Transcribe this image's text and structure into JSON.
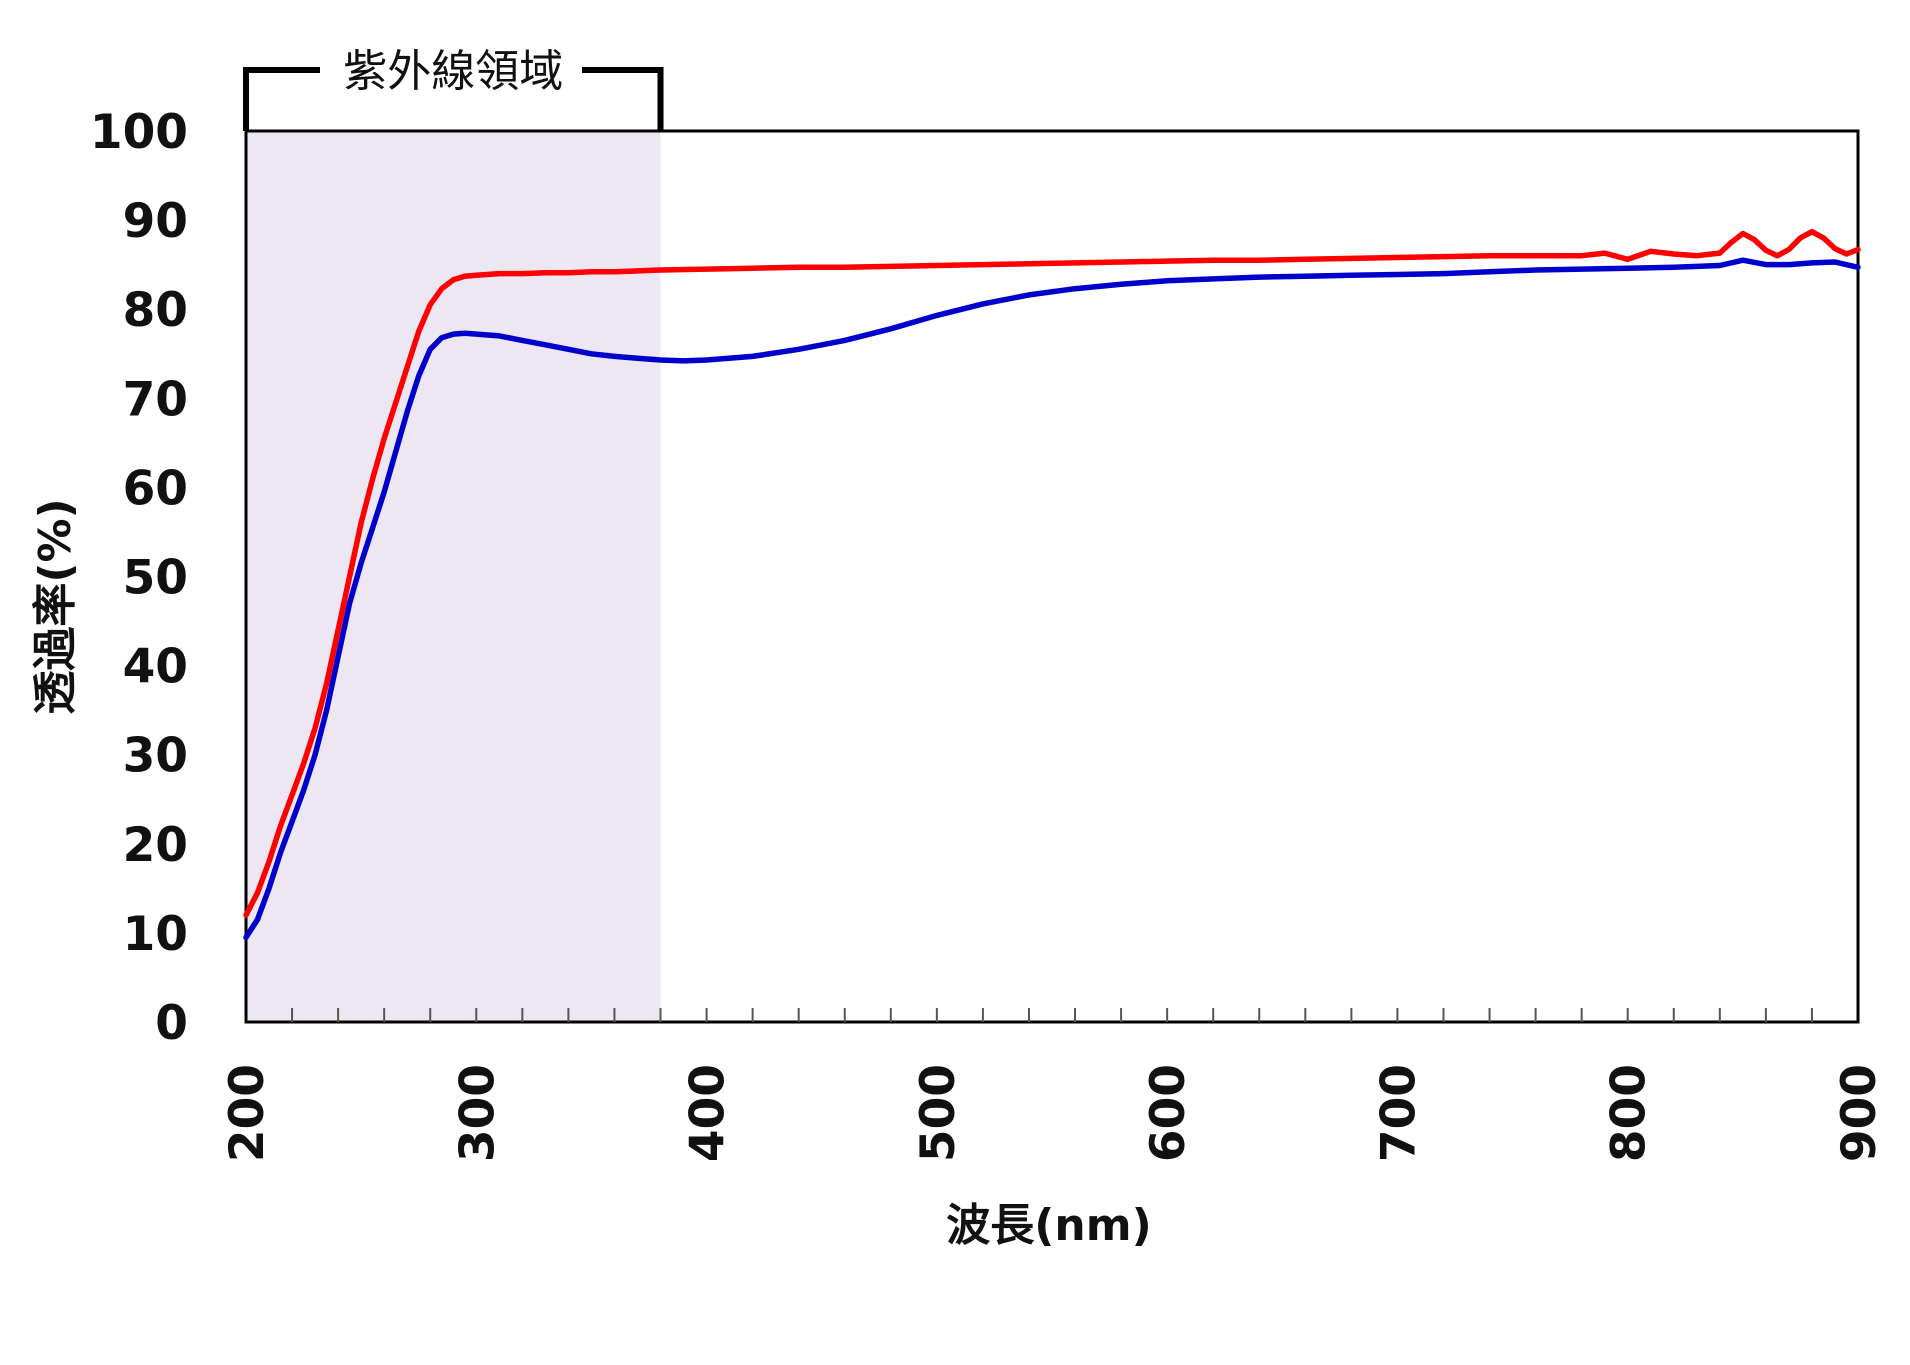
{
  "colors": {
    "red_series": "#ff0000",
    "blue_series": "#0000cc",
    "uv_band": "#ede7f3",
    "axis": "#000000"
  },
  "chart_data": {
    "type": "line",
    "title": "",
    "xlabel": "波長(nm)",
    "ylabel": "透過率(%)",
    "xlim": [
      200,
      900
    ],
    "ylim": [
      0,
      100
    ],
    "x_ticks": [
      "200",
      "300",
      "400",
      "500",
      "600",
      "700",
      "800",
      "900"
    ],
    "y_ticks": [
      "0",
      "10",
      "20",
      "30",
      "40",
      "50",
      "60",
      "70",
      "80",
      "90",
      "100"
    ],
    "x_tick_values": [
      200,
      300,
      400,
      500,
      600,
      700,
      800,
      900
    ],
    "y_tick_values": [
      0,
      10,
      20,
      30,
      40,
      50,
      60,
      70,
      80,
      90,
      100
    ],
    "minor_tick_step": 20,
    "grid": false,
    "legend": "none",
    "annotation": {
      "text": "紫外線領域",
      "x_range": [
        200,
        380
      ]
    },
    "series": [
      {
        "color": "#ff0000",
        "x": [
          200,
          205,
          210,
          215,
          220,
          225,
          230,
          235,
          240,
          245,
          250,
          255,
          260,
          265,
          270,
          275,
          280,
          285,
          290,
          295,
          300,
          310,
          320,
          330,
          340,
          350,
          360,
          370,
          380,
          400,
          420,
          440,
          460,
          480,
          500,
          520,
          540,
          560,
          580,
          600,
          620,
          640,
          660,
          680,
          700,
          720,
          740,
          760,
          780,
          790,
          800,
          810,
          820,
          830,
          840,
          845,
          850,
          855,
          860,
          865,
          870,
          875,
          880,
          885,
          890,
          895,
          900
        ],
        "y": [
          12,
          14.5,
          18,
          22,
          25.5,
          29,
          33,
          38,
          44,
          50,
          56,
          61,
          65.5,
          69.5,
          73.5,
          77.5,
          80.5,
          82.3,
          83.3,
          83.7,
          83.8,
          84,
          84,
          84.1,
          84.1,
          84.2,
          84.2,
          84.3,
          84.4,
          84.5,
          84.6,
          84.7,
          84.7,
          84.8,
          84.9,
          85,
          85.1,
          85.2,
          85.3,
          85.4,
          85.5,
          85.5,
          85.6,
          85.7,
          85.8,
          85.9,
          86,
          86,
          86,
          86.3,
          85.6,
          86.5,
          86.2,
          86,
          86.3,
          87.5,
          88.5,
          87.8,
          86.6,
          86,
          86.7,
          88,
          88.7,
          88,
          86.8,
          86.2,
          86.7
        ]
      },
      {
        "color": "#0000cc",
        "x": [
          200,
          205,
          210,
          215,
          220,
          225,
          230,
          235,
          240,
          245,
          250,
          255,
          260,
          265,
          270,
          275,
          280,
          285,
          290,
          295,
          300,
          310,
          320,
          330,
          340,
          350,
          360,
          370,
          380,
          390,
          400,
          420,
          440,
          460,
          480,
          500,
          520,
          540,
          560,
          580,
          600,
          620,
          640,
          660,
          680,
          700,
          720,
          740,
          760,
          780,
          800,
          820,
          840,
          850,
          860,
          870,
          880,
          890,
          900
        ],
        "y": [
          9.5,
          11.5,
          15,
          19,
          22.5,
          26,
          30,
          35,
          41,
          47,
          51.5,
          55.5,
          59.5,
          64,
          68.5,
          72.5,
          75.5,
          76.8,
          77.2,
          77.3,
          77.2,
          77,
          76.5,
          76,
          75.5,
          75,
          74.7,
          74.5,
          74.3,
          74.2,
          74.3,
          74.7,
          75.5,
          76.5,
          77.8,
          79.3,
          80.6,
          81.6,
          82.3,
          82.8,
          83.2,
          83.4,
          83.6,
          83.7,
          83.8,
          83.9,
          84,
          84.2,
          84.4,
          84.5,
          84.6,
          84.7,
          84.9,
          85.5,
          85,
          85,
          85.2,
          85.3,
          84.7
        ]
      }
    ]
  }
}
